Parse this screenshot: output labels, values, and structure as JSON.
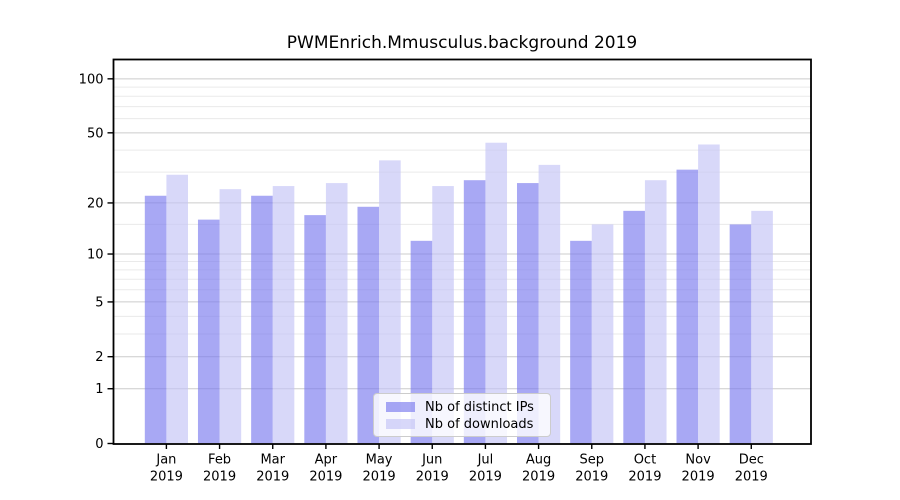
{
  "chart_data": {
    "type": "bar",
    "title": "PWMEnrich.Mmusculus.background 2019",
    "categories": [
      "Jan",
      "Feb",
      "Mar",
      "Apr",
      "May",
      "Jun",
      "Jul",
      "Aug",
      "Sep",
      "Oct",
      "Nov",
      "Dec"
    ],
    "x_year_label": "2019",
    "series": [
      {
        "name": "Nb of distinct IPs",
        "color": "rgba(121,121,238,0.65)",
        "values": [
          22,
          16,
          22,
          17,
          19,
          12,
          27,
          26,
          12,
          18,
          31,
          15
        ]
      },
      {
        "name": "Nb of downloads",
        "color": "rgba(195,195,246,0.65)",
        "values": [
          29,
          24,
          25,
          26,
          35,
          25,
          44,
          33,
          15,
          27,
          43,
          18
        ]
      }
    ],
    "y_axis": {
      "scale": "log1p",
      "ticks": [
        0,
        1,
        2,
        5,
        10,
        20,
        50,
        100
      ],
      "minor_ticks": [
        3,
        4,
        6,
        7,
        8,
        9,
        15,
        30,
        40,
        60,
        70,
        80,
        90
      ],
      "ylim": [
        0,
        128
      ]
    },
    "xlabel": "",
    "ylabel": "",
    "grid": true,
    "legend_position": "bottom-center",
    "colors": {
      "major_grid": "#cccccc",
      "minor_grid": "#eaeaea",
      "axis": "#000000",
      "text": "#000000",
      "background": "#ffffff"
    }
  }
}
